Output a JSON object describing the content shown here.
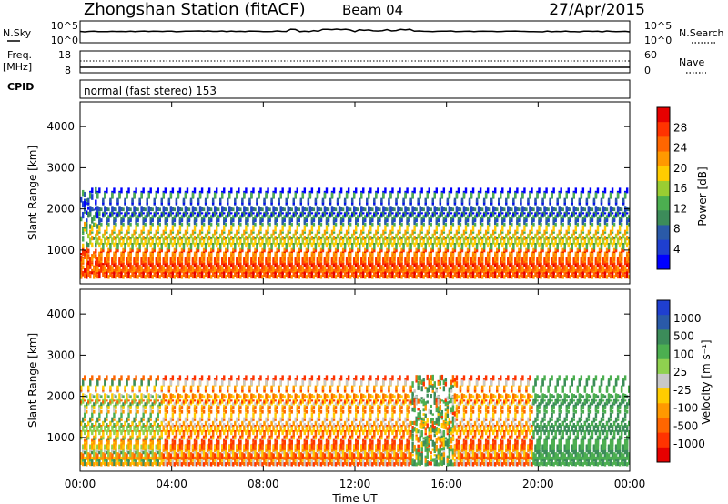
{
  "header": {
    "station": "Zhongshan Station (fitACF)",
    "beam": "Beam 04",
    "date": "27/Apr/2015"
  },
  "strips": {
    "nsky_label": "N.Sky",
    "nsearch_label": "N.Search",
    "nsky_ticks": [
      "10^5",
      "10^0"
    ],
    "nsearch_ticks": [
      "10^5",
      "10^0"
    ],
    "freq_label_1": "Freq.",
    "freq_label_2": "[MHz]",
    "freq_ticks": [
      "18",
      "8"
    ],
    "nave_label": "Nave",
    "nave_ticks": [
      "60",
      "0"
    ],
    "cpid_label": "CPID",
    "cpid_text": "normal (fast stereo) 153"
  },
  "chart_data": [
    {
      "type": "heatmap",
      "name": "power",
      "ylabel": "Slant Range [km]",
      "ylim": [
        180,
        4600
      ],
      "yticks": [
        1000,
        2000,
        3000,
        4000
      ],
      "colorbar": {
        "label": "Power [dB]",
        "ticks": [
          "28",
          "24",
          "20",
          "16",
          "12",
          "8",
          "4"
        ],
        "colors": [
          "#e60000",
          "#ff3300",
          "#ff6600",
          "#ff9900",
          "#ffcc00",
          "#9acd32",
          "#4caf50",
          "#3c8c5a",
          "#2a5aa8",
          "#1f3fd0",
          "#0000ff"
        ]
      }
    },
    {
      "type": "heatmap",
      "name": "velocity",
      "ylabel": "Slant Range [km]",
      "ylim": [
        180,
        4600
      ],
      "yticks": [
        1000,
        2000,
        3000,
        4000
      ],
      "xlabel": "Time UT",
      "xticks": [
        "00:00",
        "04:00",
        "08:00",
        "12:00",
        "16:00",
        "20:00",
        "00:00"
      ],
      "colorbar": {
        "label": "Velocity [m s⁻¹]",
        "ticks": [
          "1000",
          "500",
          "100",
          "25",
          "-25",
          "-100",
          "-500",
          "-1000"
        ],
        "colors": [
          "#1f3fd0",
          "#2a5aa8",
          "#3c8c5a",
          "#4caf50",
          "#8fd14f",
          "#c8c8c8",
          "#ffcc00",
          "#ff9900",
          "#ff6600",
          "#ff3300",
          "#e60000"
        ]
      }
    }
  ],
  "colors": {
    "axis": "#000000",
    "strip_fill": "#ffffff"
  }
}
